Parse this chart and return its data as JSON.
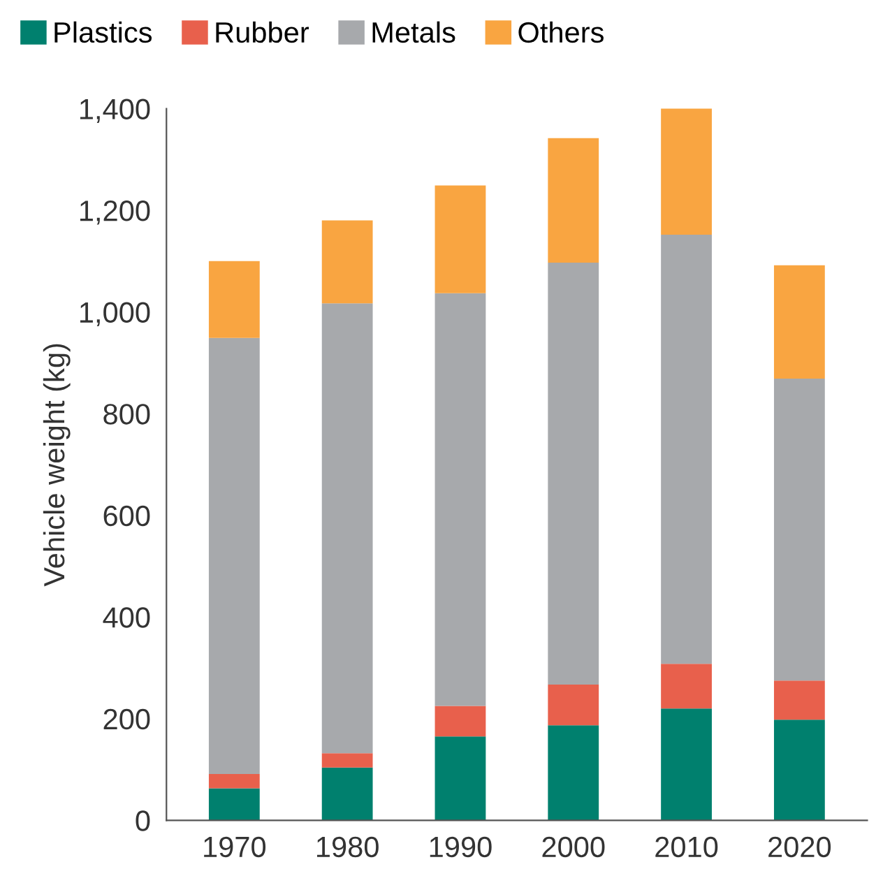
{
  "chart_data": {
    "type": "bar",
    "stacked": true,
    "ylabel": "Vehicle weight (kg)",
    "categories": [
      "1970",
      "1980",
      "1990",
      "2000",
      "2010",
      "2020"
    ],
    "series": [
      {
        "name": "Plastics",
        "color": "#00806e",
        "values": [
          63,
          104,
          165,
          187,
          220,
          198
        ]
      },
      {
        "name": "Rubber",
        "color": "#e8604c",
        "values": [
          28,
          28,
          60,
          80,
          88,
          77
        ]
      },
      {
        "name": "Metals",
        "color": "#a7a9ac",
        "values": [
          858,
          885,
          812,
          830,
          844,
          594
        ]
      },
      {
        "name": "Others",
        "color": "#f9a541",
        "values": [
          151,
          163,
          212,
          245,
          250,
          223
        ]
      }
    ],
    "ylim": [
      0,
      1400
    ],
    "yticks": [
      0,
      {
        "value": 200,
        "label": "200"
      },
      {
        "value": 400,
        "label": "400"
      },
      {
        "value": 600,
        "label": "600"
      },
      {
        "value": 800,
        "label": "800"
      },
      {
        "value": 1000,
        "label": "1,000"
      },
      {
        "value": 1200,
        "label": "1,200"
      },
      {
        "value": 1400,
        "label": "1,400"
      }
    ],
    "grid": false,
    "legend": "top left"
  }
}
